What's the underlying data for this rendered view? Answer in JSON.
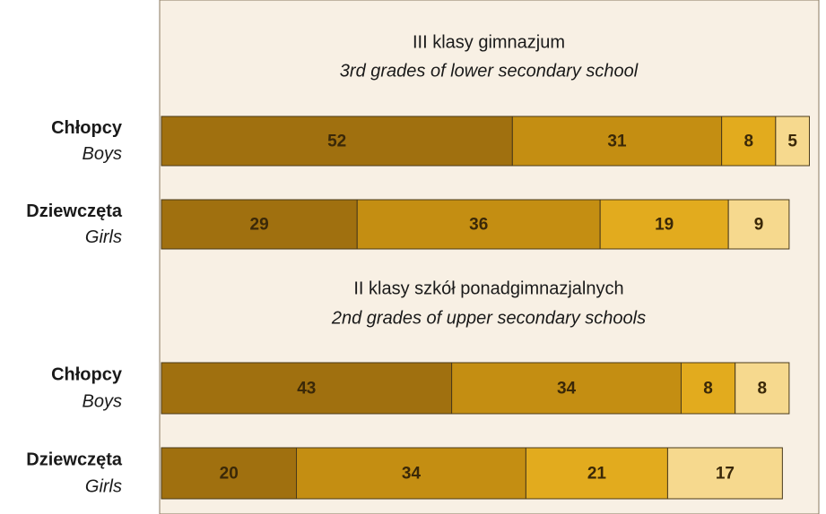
{
  "chart_data": [
    {
      "type": "bar",
      "orientation": "horizontal",
      "stacked": true,
      "title": "III klasy gimnazjum",
      "subtitle": "3rd grades of lower secondary school",
      "categories": [
        "Chłopcy",
        "Dziewczęta"
      ],
      "categories_en": [
        "Boys",
        "Girls"
      ],
      "xlim": [
        0,
        97
      ],
      "series": [
        {
          "color": "#a0700f",
          "values": [
            52,
            29
          ]
        },
        {
          "color": "#c48e12",
          "values": [
            31,
            36
          ]
        },
        {
          "color": "#e2ab1e",
          "values": [
            8,
            19
          ]
        },
        {
          "color": "#f6d98e",
          "values": [
            5,
            9
          ]
        }
      ]
    },
    {
      "type": "bar",
      "orientation": "horizontal",
      "stacked": true,
      "title": "II klasy szkół ponadgimnazjalnych",
      "subtitle": "2nd grades of upper secondary schools",
      "categories": [
        "Chłopcy",
        "Dziewczęta"
      ],
      "categories_en": [
        "Boys",
        "Girls"
      ],
      "xlim": [
        0,
        97
      ],
      "series": [
        {
          "color": "#a0700f",
          "values": [
            43,
            20
          ]
        },
        {
          "color": "#c48e12",
          "values": [
            34,
            34
          ]
        },
        {
          "color": "#e2ab1e",
          "values": [
            8,
            21
          ]
        },
        {
          "color": "#f6d98e",
          "values": [
            8,
            17
          ]
        }
      ]
    }
  ]
}
